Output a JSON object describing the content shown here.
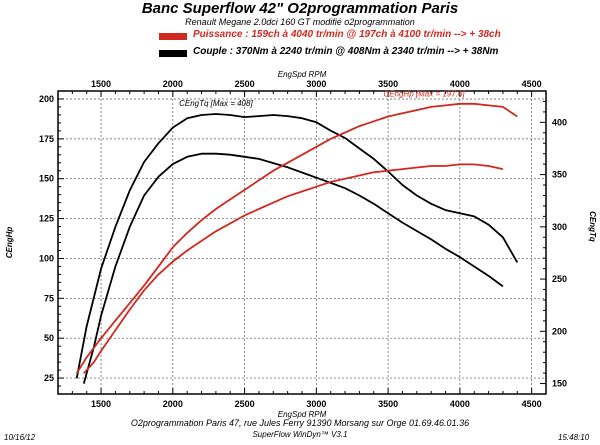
{
  "chart_data": {
    "type": "line",
    "title": "Banc Superflow 42\" O2programmation Paris",
    "subtitle": "Renault Megane 2.0dci 160 GT modifié o2programmation",
    "legend": [
      {
        "text": "Puissance : 159ch à 4040 tr/min @ 197ch à 4100 tr/min --> + 38ch",
        "color": "#d0281e"
      },
      {
        "text": "Couple : 370Nm à 2240 tr/min @ 408Nm à 2340 tr/min --> + 38Nm",
        "color": "#000000"
      }
    ],
    "xlabel": "EngSpd RPM",
    "ylabel_left": "CEngHp",
    "ylabel_right": "CEngTq",
    "x_ticks": [
      1500,
      2000,
      2500,
      3000,
      3500,
      4000,
      4500
    ],
    "y_left_ticks": [
      25,
      50,
      75,
      100,
      125,
      150,
      175,
      200
    ],
    "y_right_ticks": [
      150,
      200,
      250,
      300,
      350,
      400
    ],
    "xlim": [
      1200,
      4600
    ],
    "ylim_left": [
      15,
      205
    ],
    "ylim_right": [
      140,
      430
    ],
    "annotations": [
      {
        "text": "CEngTq [Max = 408]",
        "color": "#000000",
        "x": 2300,
        "axis": "right",
        "y": 412
      },
      {
        "text": "CEngHp [Max = 197.0]",
        "color": "#d0281e",
        "x": 3750,
        "axis": "left",
        "y": 199
      }
    ],
    "grid": true,
    "series": [
      {
        "color": "#000000",
        "axis": "right",
        "x": [
          1330,
          1400,
          1500,
          1600,
          1700,
          1800,
          1900,
          2000,
          2100,
          2200,
          2300,
          2400,
          2500,
          2600,
          2700,
          2800,
          2900,
          3000,
          3100,
          3200,
          3300,
          3400,
          3500,
          3600,
          3700,
          3800,
          3900,
          4000,
          4100,
          4200,
          4300,
          4400
        ],
        "y": [
          155,
          205,
          260,
          300,
          335,
          362,
          380,
          395,
          404,
          407,
          408,
          407,
          405,
          406,
          407,
          406,
          404,
          400,
          392,
          385,
          375,
          365,
          353,
          340,
          330,
          322,
          316,
          313,
          310,
          302,
          290,
          266
        ]
      },
      {
        "color": "#000000",
        "axis": "right",
        "x": [
          1380,
          1450,
          1500,
          1600,
          1700,
          1800,
          1900,
          2000,
          2100,
          2200,
          2300,
          2400,
          2500,
          2600,
          2700,
          2800,
          2900,
          3000,
          3100,
          3200,
          3300,
          3400,
          3500,
          3600,
          3700,
          3800,
          3900,
          4000,
          4100,
          4200,
          4300
        ],
        "y": [
          150,
          185,
          215,
          262,
          300,
          330,
          348,
          360,
          367,
          370,
          370,
          369,
          367,
          365,
          361,
          357,
          352,
          347,
          342,
          337,
          330,
          322,
          313,
          304,
          296,
          288,
          279,
          271,
          262,
          253,
          243
        ]
      },
      {
        "color": "#d0281e",
        "axis": "left",
        "x": [
          1330,
          1400,
          1500,
          1600,
          1700,
          1800,
          1900,
          2000,
          2100,
          2200,
          2300,
          2400,
          2500,
          2600,
          2700,
          2800,
          2900,
          3000,
          3100,
          3200,
          3300,
          3400,
          3500,
          3600,
          3700,
          3800,
          3900,
          4000,
          4100,
          4200,
          4300,
          4400
        ],
        "y": [
          28,
          38,
          50,
          61,
          72,
          83,
          95,
          107,
          116,
          124,
          131,
          137,
          143,
          149,
          155,
          160,
          165,
          170,
          175,
          179,
          183,
          186,
          189,
          191,
          193,
          195,
          196,
          197,
          197,
          196,
          195,
          189
        ]
      },
      {
        "color": "#d0281e",
        "axis": "left",
        "x": [
          1380,
          1450,
          1500,
          1600,
          1700,
          1800,
          1900,
          2000,
          2100,
          2200,
          2300,
          2400,
          2500,
          2600,
          2700,
          2800,
          2900,
          3000,
          3100,
          3200,
          3300,
          3400,
          3500,
          3600,
          3700,
          3800,
          3900,
          4000,
          4100,
          4200,
          4300
        ],
        "y": [
          28,
          35,
          42,
          55,
          68,
          80,
          90,
          98,
          105,
          111,
          117,
          122,
          127,
          131,
          135,
          139,
          142,
          145,
          148,
          150,
          152,
          154,
          155,
          156,
          157,
          158,
          158,
          159,
          159,
          158,
          156
        ]
      }
    ]
  },
  "footer": {
    "address": "O2programmation Paris 47, rue Jules Ferry 91390 Morsang sur Orge 01.69.46.01.36",
    "software": "SuperFlow WinDyn™ V3.1",
    "date": "10/16/12",
    "time": "15:48:10"
  }
}
